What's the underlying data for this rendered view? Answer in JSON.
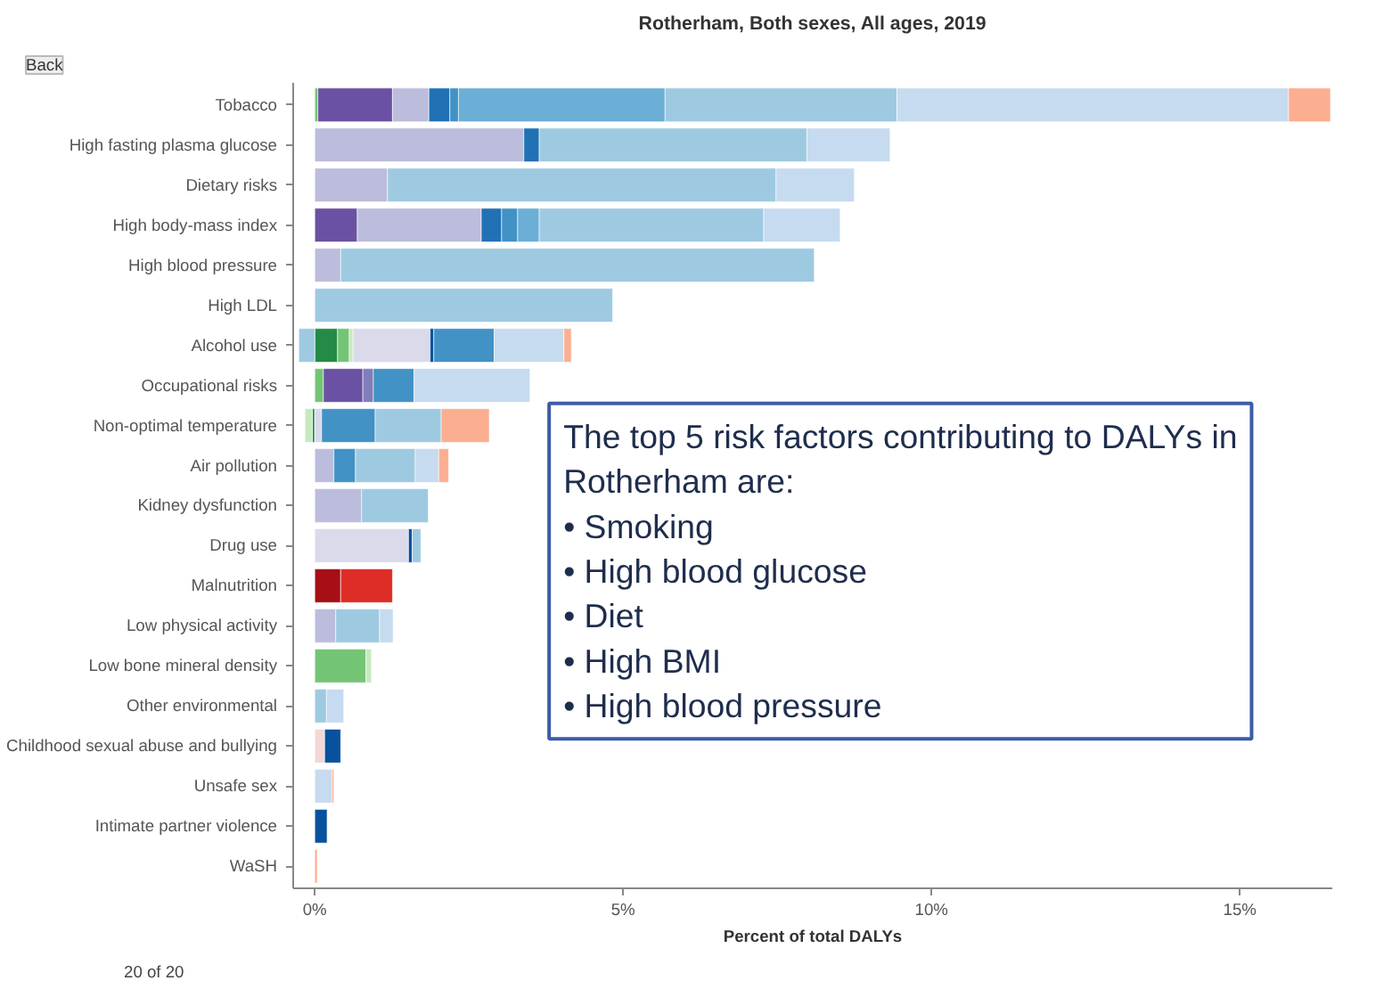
{
  "chart_data": {
    "type": "bar",
    "orientation": "horizontal",
    "stacked": true,
    "title": "Rotherham, Both sexes, All ages, 2019",
    "xlabel": "Percent of total DALYs",
    "categories": [
      "Tobacco",
      "High fasting plasma glucose",
      "Dietary risks",
      "High body-mass index",
      "High blood pressure",
      "High LDL",
      "Alcohol use",
      "Occupational risks",
      "Non-optimal temperature",
      "Air pollution",
      "Kidney dysfunction",
      "Drug use",
      "Malnutrition",
      "Low physical activity",
      "Low bone mineral density",
      "Other environmental",
      "Childhood sexual abuse and bullying",
      "Unsafe sex",
      "Intimate partner violence",
      "WaSH"
    ],
    "series": [
      {
        "color": "#238b45",
        "values": [
          null,
          null,
          null,
          null,
          null,
          null,
          0.37,
          null,
          -0.04,
          null,
          null,
          null,
          null,
          null,
          null,
          null,
          null,
          null,
          null,
          null
        ]
      },
      {
        "color": "#74c476",
        "values": [
          0.05,
          null,
          null,
          null,
          null,
          null,
          0.19,
          0.14,
          null,
          null,
          null,
          null,
          null,
          null,
          0.83,
          null,
          null,
          null,
          null,
          null
        ]
      },
      {
        "color": "#c7e9c0",
        "values": [
          null,
          null,
          null,
          null,
          null,
          null,
          0.06,
          null,
          -0.12,
          null,
          null,
          null,
          null,
          null,
          0.09,
          null,
          null,
          null,
          null,
          null
        ]
      },
      {
        "color": "#a50f15",
        "values": [
          null,
          null,
          null,
          null,
          null,
          null,
          null,
          null,
          null,
          null,
          null,
          null,
          0.42,
          null,
          null,
          null,
          null,
          null,
          null,
          null
        ]
      },
      {
        "color": "#de2d26",
        "values": [
          null,
          null,
          null,
          null,
          null,
          null,
          null,
          null,
          null,
          null,
          null,
          null,
          0.84,
          null,
          null,
          null,
          null,
          null,
          null,
          null
        ]
      },
      {
        "color": "#6a51a3",
        "values": [
          1.21,
          null,
          null,
          0.69,
          null,
          null,
          null,
          0.64,
          null,
          null,
          null,
          null,
          null,
          null,
          null,
          null,
          null,
          null,
          null,
          null
        ]
      },
      {
        "color": "#807dba",
        "values": [
          null,
          null,
          null,
          null,
          null,
          null,
          null,
          0.17,
          null,
          null,
          null,
          null,
          null,
          null,
          null,
          null,
          null,
          null,
          null,
          null
        ]
      },
      {
        "color": "#bcbddc",
        "values": [
          0.59,
          3.39,
          1.18,
          2.01,
          0.42,
          null,
          null,
          null,
          null,
          0.31,
          0.76,
          null,
          null,
          0.34,
          null,
          null,
          null,
          null,
          null,
          null
        ]
      },
      {
        "color": "#dadaeb",
        "values": [
          null,
          null,
          null,
          null,
          null,
          null,
          1.25,
          null,
          0.11,
          null,
          null,
          1.52,
          null,
          null,
          null,
          null,
          null,
          null,
          null,
          null
        ]
      },
      {
        "color": "#f2d7d5",
        "values": [
          null,
          null,
          null,
          null,
          null,
          null,
          null,
          null,
          null,
          null,
          null,
          null,
          null,
          null,
          null,
          null,
          0.16,
          null,
          null,
          null
        ]
      },
      {
        "color": "#08519c",
        "values": [
          null,
          null,
          null,
          null,
          null,
          null,
          0.06,
          null,
          null,
          null,
          null,
          0.06,
          null,
          null,
          null,
          null,
          0.26,
          null,
          0.2,
          null
        ]
      },
      {
        "color": "#2171b5",
        "values": [
          0.34,
          0.25,
          null,
          0.33,
          null,
          null,
          null,
          null,
          null,
          null,
          null,
          null,
          null,
          null,
          null,
          null,
          null,
          null,
          null,
          null
        ]
      },
      {
        "color": "#4292c6",
        "values": [
          0.14,
          null,
          null,
          0.26,
          null,
          null,
          0.98,
          0.66,
          0.87,
          0.35,
          null,
          null,
          null,
          null,
          null,
          null,
          null,
          null,
          null,
          null
        ]
      },
      {
        "color": "#6baed6",
        "values": [
          3.35,
          null,
          null,
          0.35,
          null,
          null,
          null,
          null,
          null,
          null,
          null,
          null,
          null,
          null,
          null,
          null,
          null,
          null,
          null,
          null
        ]
      },
      {
        "color": "#9ecae1",
        "values": [
          3.76,
          4.34,
          6.3,
          3.64,
          7.68,
          4.83,
          -0.26,
          null,
          1.07,
          0.97,
          1.08,
          0.14,
          null,
          0.71,
          null,
          0.19,
          null,
          null,
          null,
          null
        ]
      },
      {
        "color": "#c6dbef",
        "values": [
          6.35,
          1.35,
          1.27,
          1.24,
          null,
          null,
          1.13,
          1.88,
          null,
          0.38,
          null,
          null,
          null,
          0.22,
          null,
          0.28,
          null,
          0.28,
          null,
          null
        ]
      },
      {
        "color": "#fcae91",
        "values": [
          0.68,
          null,
          null,
          null,
          null,
          null,
          0.12,
          null,
          0.78,
          0.16,
          null,
          null,
          null,
          null,
          null,
          null,
          null,
          0.03,
          null,
          0.04
        ]
      }
    ],
    "xlim": [
      -0.35,
      16.5
    ],
    "xticks": [
      {
        "value": 0,
        "label": "0%"
      },
      {
        "value": 5,
        "label": "5%"
      },
      {
        "value": 10,
        "label": "10%"
      },
      {
        "value": 15,
        "label": "15%"
      }
    ],
    "annotations": [
      "Back",
      "20 of 20",
      "The top 5 risk factors contributing to DALYs in\nRotherham are:\n• Smoking\n• High blood glucose\n• Diet\n• High BMI\n• High blood pressure"
    ]
  }
}
